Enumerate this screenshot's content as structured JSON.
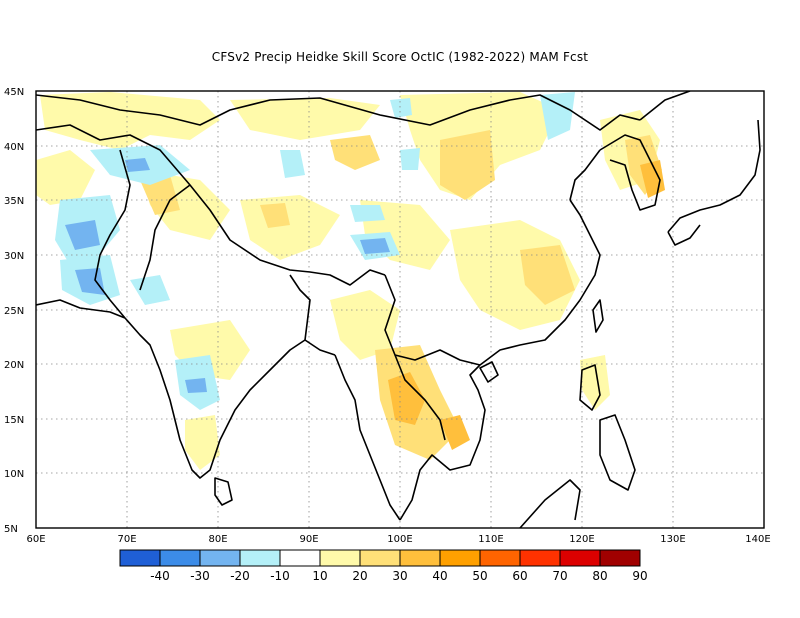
{
  "title": "CFSv2 Precip Heidke Skill Score OctIC (1982-2022) MAM Fcst",
  "map": {
    "lon_range": [
      60,
      140
    ],
    "lat_range": [
      5,
      45
    ],
    "lon_ticks": [
      "60E",
      "70E",
      "80E",
      "90E",
      "100E",
      "110E",
      "120E",
      "130E",
      "140E"
    ],
    "lat_ticks": [
      "5N",
      "10N",
      "15N",
      "20N",
      "25N",
      "30N",
      "35N",
      "40N",
      "45N"
    ],
    "grid": "dotted"
  },
  "legend": {
    "colors": [
      "#1f5fd6",
      "#3c8ce8",
      "#73b4f0",
      "#b4f0f8",
      "#ffffff",
      "#fffaaa",
      "#ffe078",
      "#ffbf3c",
      "#ffa000",
      "#ff6400",
      "#ff3200",
      "#dc0000",
      "#a00000"
    ],
    "labels": [
      "-40",
      "-30",
      "-20",
      "-10",
      "10",
      "20",
      "30",
      "40",
      "50",
      "60",
      "70",
      "80",
      "90"
    ]
  },
  "palette": {
    "light_yellow": "#fffaaa",
    "yellow": "#ffe078",
    "orange_light": "#ffbf3c",
    "orange": "#ffa000",
    "light_blue": "#b4f0f8",
    "blue": "#73b4f0",
    "mid_blue": "#3c8ce8"
  }
}
